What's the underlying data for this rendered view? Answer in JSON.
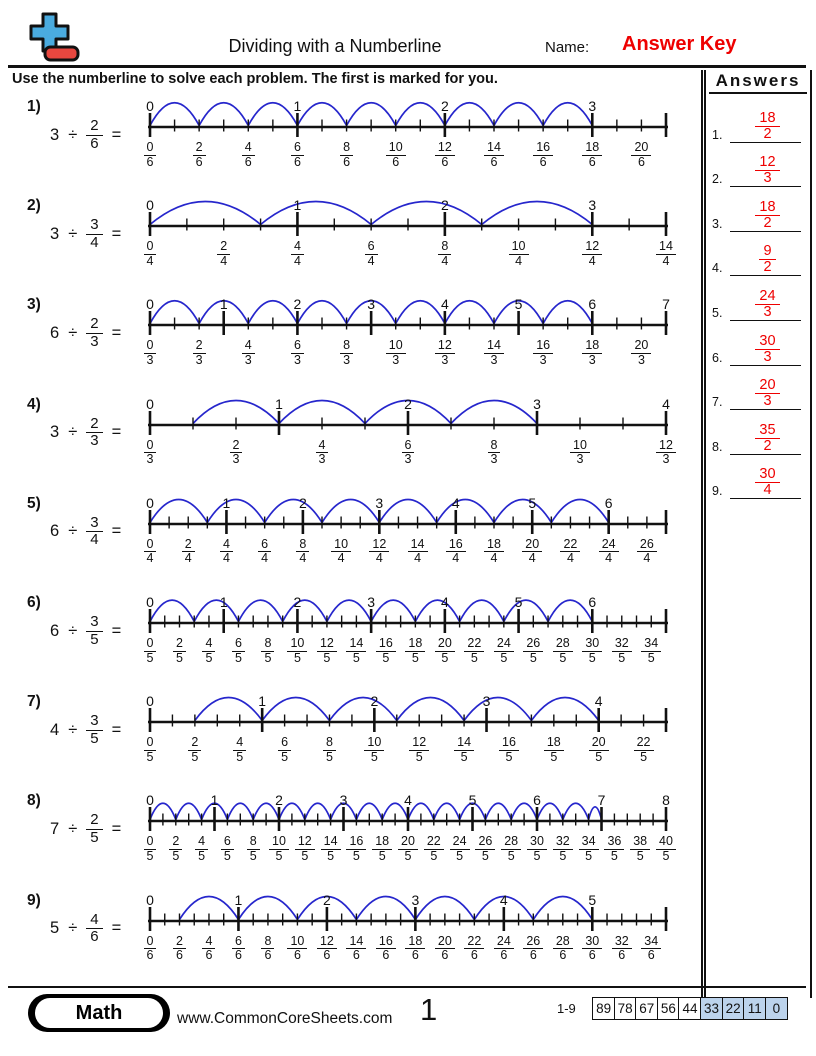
{
  "header": {
    "title": "Dividing with a Numberline",
    "name_label": "Name:",
    "answer_key": "Answer Key",
    "instruction": "Use the numberline to solve each problem. The first is marked for you."
  },
  "symbols": {
    "divide": "÷",
    "equals": "="
  },
  "answers_panel": {
    "title": "Answers",
    "items": [
      {
        "index": "1.",
        "numerator": "18",
        "denominator": "2"
      },
      {
        "index": "2.",
        "numerator": "12",
        "denominator": "3"
      },
      {
        "index": "3.",
        "numerator": "18",
        "denominator": "2"
      },
      {
        "index": "4.",
        "numerator": "9",
        "denominator": "2"
      },
      {
        "index": "5.",
        "numerator": "24",
        "denominator": "3"
      },
      {
        "index": "6.",
        "numerator": "30",
        "denominator": "3"
      },
      {
        "index": "7.",
        "numerator": "20",
        "denominator": "3"
      },
      {
        "index": "8.",
        "numerator": "35",
        "denominator": "2"
      },
      {
        "index": "9.",
        "numerator": "30",
        "denominator": "4"
      }
    ]
  },
  "problems": [
    {
      "label": "1)",
      "dividend": "3",
      "divisor": {
        "numerator": "2",
        "denominator": "6"
      },
      "numberline": {
        "denominator": 6,
        "total_ticks": 21,
        "fraction_label_step": 2,
        "fraction_label_max": 20,
        "whole_labels": [
          {
            "t": "0",
            "x": 0
          },
          {
            "t": "1",
            "x": 6
          },
          {
            "t": "2",
            "x": 12
          },
          {
            "t": "3",
            "x": 18
          }
        ],
        "arcs": [
          [
            0,
            2
          ],
          [
            2,
            4
          ],
          [
            4,
            6
          ],
          [
            6,
            8
          ],
          [
            8,
            10
          ],
          [
            10,
            12
          ],
          [
            12,
            14
          ],
          [
            14,
            16
          ],
          [
            16,
            18
          ]
        ]
      }
    },
    {
      "label": "2)",
      "dividend": "3",
      "divisor": {
        "numerator": "3",
        "denominator": "4"
      },
      "numberline": {
        "denominator": 4,
        "total_ticks": 14,
        "fraction_label_step": 2,
        "fraction_label_max": 14,
        "whole_labels": [
          {
            "t": "0",
            "x": 0
          },
          {
            "t": "1",
            "x": 4
          },
          {
            "t": "2",
            "x": 8
          },
          {
            "t": "3",
            "x": 12
          }
        ],
        "arcs": [
          [
            0,
            3
          ],
          [
            3,
            6
          ],
          [
            6,
            9
          ],
          [
            9,
            12
          ]
        ]
      }
    },
    {
      "label": "3)",
      "dividend": "6",
      "divisor": {
        "numerator": "2",
        "denominator": "3"
      },
      "numberline": {
        "denominator": 3,
        "total_ticks": 21,
        "fraction_label_step": 2,
        "fraction_label_max": 20,
        "whole_labels": [
          {
            "t": "0",
            "x": 0
          },
          {
            "t": "1",
            "x": 3
          },
          {
            "t": "2",
            "x": 6
          },
          {
            "t": "3",
            "x": 9
          },
          {
            "t": "4",
            "x": 12
          },
          {
            "t": "5",
            "x": 15
          },
          {
            "t": "6",
            "x": 18
          },
          {
            "t": "7",
            "x": 21
          }
        ],
        "arcs": [
          [
            0,
            2
          ],
          [
            2,
            4
          ],
          [
            4,
            6
          ],
          [
            6,
            8
          ],
          [
            8,
            10
          ],
          [
            10,
            12
          ],
          [
            12,
            14
          ],
          [
            14,
            16
          ],
          [
            16,
            18
          ]
        ]
      }
    },
    {
      "label": "4)",
      "dividend": "3",
      "divisor": {
        "numerator": "2",
        "denominator": "3"
      },
      "numberline": {
        "denominator": 3,
        "total_ticks": 12,
        "fraction_label_step": 2,
        "fraction_label_max": 12,
        "whole_labels": [
          {
            "t": "0",
            "x": 0
          },
          {
            "t": "1",
            "x": 3
          },
          {
            "t": "2",
            "x": 6
          },
          {
            "t": "3",
            "x": 9
          },
          {
            "t": "4",
            "x": 12
          }
        ],
        "arcs": [
          [
            1,
            3
          ],
          [
            3,
            5
          ],
          [
            5,
            7
          ],
          [
            7,
            9
          ]
        ]
      }
    },
    {
      "label": "5)",
      "dividend": "6",
      "divisor": {
        "numerator": "3",
        "denominator": "4"
      },
      "numberline": {
        "denominator": 4,
        "total_ticks": 27,
        "fraction_label_step": 2,
        "fraction_label_max": 26,
        "whole_labels": [
          {
            "t": "0",
            "x": 0
          },
          {
            "t": "1",
            "x": 4
          },
          {
            "t": "2",
            "x": 8
          },
          {
            "t": "3",
            "x": 12
          },
          {
            "t": "4",
            "x": 16
          },
          {
            "t": "5",
            "x": 20
          },
          {
            "t": "6",
            "x": 24
          }
        ],
        "arcs": [
          [
            0,
            3
          ],
          [
            3,
            6
          ],
          [
            6,
            9
          ],
          [
            9,
            12
          ],
          [
            12,
            15
          ],
          [
            15,
            18
          ],
          [
            18,
            21
          ],
          [
            21,
            24
          ]
        ]
      }
    },
    {
      "label": "6)",
      "dividend": "6",
      "divisor": {
        "numerator": "3",
        "denominator": "5"
      },
      "numberline": {
        "denominator": 5,
        "total_ticks": 35,
        "fraction_label_step": 2,
        "fraction_label_max": 34,
        "whole_labels": [
          {
            "t": "0",
            "x": 0
          },
          {
            "t": "1",
            "x": 5
          },
          {
            "t": "2",
            "x": 10
          },
          {
            "t": "3",
            "x": 15
          },
          {
            "t": "4",
            "x": 20
          },
          {
            "t": "5",
            "x": 25
          },
          {
            "t": "6",
            "x": 30
          }
        ],
        "arcs": [
          [
            0,
            3
          ],
          [
            3,
            6
          ],
          [
            6,
            9
          ],
          [
            9,
            12
          ],
          [
            12,
            15
          ],
          [
            15,
            18
          ],
          [
            18,
            21
          ],
          [
            21,
            24
          ],
          [
            24,
            27
          ],
          [
            27,
            30
          ]
        ]
      }
    },
    {
      "label": "7)",
      "dividend": "4",
      "divisor": {
        "numerator": "3",
        "denominator": "5"
      },
      "numberline": {
        "denominator": 5,
        "total_ticks": 23,
        "fraction_label_step": 2,
        "fraction_label_max": 22,
        "whole_labels": [
          {
            "t": "0",
            "x": 0
          },
          {
            "t": "1",
            "x": 5
          },
          {
            "t": "2",
            "x": 10
          },
          {
            "t": "3",
            "x": 15
          },
          {
            "t": "4",
            "x": 20
          }
        ],
        "arcs": [
          [
            2,
            5
          ],
          [
            5,
            8
          ],
          [
            8,
            11
          ],
          [
            11,
            14
          ],
          [
            14,
            17
          ],
          [
            17,
            20
          ]
        ]
      }
    },
    {
      "label": "8)",
      "dividend": "7",
      "divisor": {
        "numerator": "2",
        "denominator": "5"
      },
      "numberline": {
        "denominator": 5,
        "total_ticks": 40,
        "fraction_label_step": 2,
        "fraction_label_max": 40,
        "whole_labels": [
          {
            "t": "0",
            "x": 0
          },
          {
            "t": "1",
            "x": 5
          },
          {
            "t": "2",
            "x": 10
          },
          {
            "t": "3",
            "x": 15
          },
          {
            "t": "4",
            "x": 20
          },
          {
            "t": "5",
            "x": 25
          },
          {
            "t": "6",
            "x": 30
          },
          {
            "t": "7",
            "x": 35
          },
          {
            "t": "8",
            "x": 40
          }
        ],
        "arcs": [
          [
            0,
            2
          ],
          [
            2,
            4
          ],
          [
            4,
            6
          ],
          [
            6,
            8
          ],
          [
            8,
            10
          ],
          [
            10,
            12
          ],
          [
            12,
            14
          ],
          [
            14,
            16
          ],
          [
            16,
            18
          ],
          [
            18,
            20
          ],
          [
            20,
            22
          ],
          [
            22,
            24
          ],
          [
            24,
            26
          ],
          [
            26,
            28
          ],
          [
            28,
            30
          ],
          [
            30,
            32
          ],
          [
            32,
            34
          ],
          [
            34,
            35
          ]
        ]
      }
    },
    {
      "label": "9)",
      "dividend": "5",
      "divisor": {
        "numerator": "4",
        "denominator": "6"
      },
      "numberline": {
        "denominator": 6,
        "total_ticks": 35,
        "fraction_label_step": 2,
        "fraction_label_max": 34,
        "whole_labels": [
          {
            "t": "0",
            "x": 0
          },
          {
            "t": "1",
            "x": 6
          },
          {
            "t": "2",
            "x": 12
          },
          {
            "t": "3",
            "x": 18
          },
          {
            "t": "4",
            "x": 24
          },
          {
            "t": "5",
            "x": 30
          }
        ],
        "arcs": [
          [
            2,
            6
          ],
          [
            6,
            10
          ],
          [
            10,
            14
          ],
          [
            14,
            18
          ],
          [
            18,
            22
          ],
          [
            22,
            26
          ],
          [
            26,
            30
          ]
        ]
      }
    }
  ],
  "footer": {
    "subject": "Math",
    "website": "www.CommonCoreSheets.com",
    "page_number": "1",
    "score_range": "1-9",
    "score_boxes": [
      {
        "text": "89",
        "highlighted": false
      },
      {
        "text": "78",
        "highlighted": false
      },
      {
        "text": "67",
        "highlighted": false
      },
      {
        "text": "56",
        "highlighted": false
      },
      {
        "text": "44",
        "highlighted": false
      },
      {
        "text": "33",
        "highlighted": true
      },
      {
        "text": "22",
        "highlighted": true
      },
      {
        "text": "11",
        "highlighted": true
      },
      {
        "text": "0",
        "highlighted": true
      }
    ]
  },
  "colors": {
    "answer_red": "#ee0000",
    "arc_blue": "#2626cc",
    "line_black": "#111111",
    "score_highlight": "#bcd3ec",
    "logo_blue": "#4aabdf",
    "logo_red": "#e8473f"
  }
}
